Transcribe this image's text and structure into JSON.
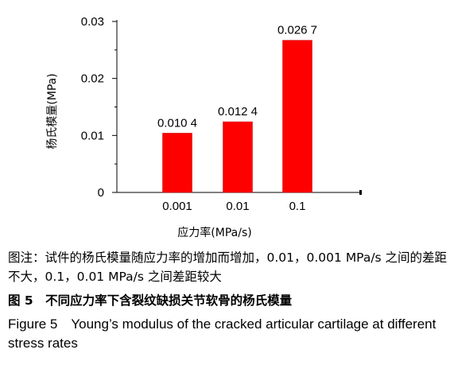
{
  "chart_data": {
    "type": "bar",
    "categories": [
      "0.001",
      "0.01",
      "0.1"
    ],
    "values": [
      0.0104,
      0.0124,
      0.0267
    ],
    "data_labels": [
      "0.010 4",
      "0.012 4",
      "0.026 7"
    ],
    "xlabel": "应力率(MPa/s)",
    "ylabel": "杨氏模量(MPa)",
    "ylim": [
      0,
      0.03
    ],
    "yticks": [
      0,
      0.01,
      0.02,
      0.03
    ],
    "ytick_labels": [
      "0",
      "0.01",
      "0.02",
      "0.03"
    ],
    "bar_color": "#ff0000",
    "grid": false
  },
  "captions": {
    "note": "图注：试件的杨氏模量随应力率的增加而增加，0.01，0.001 MPa/s 之间的差距不大，0.1，0.01 MPa/s 之间差距较大",
    "title_cn": "图 5　不同应力率下含裂纹缺损关节软骨的杨氏模量",
    "title_en": "Figure 5　Young’s modulus of the cracked articular cartilage at different stress rates"
  }
}
